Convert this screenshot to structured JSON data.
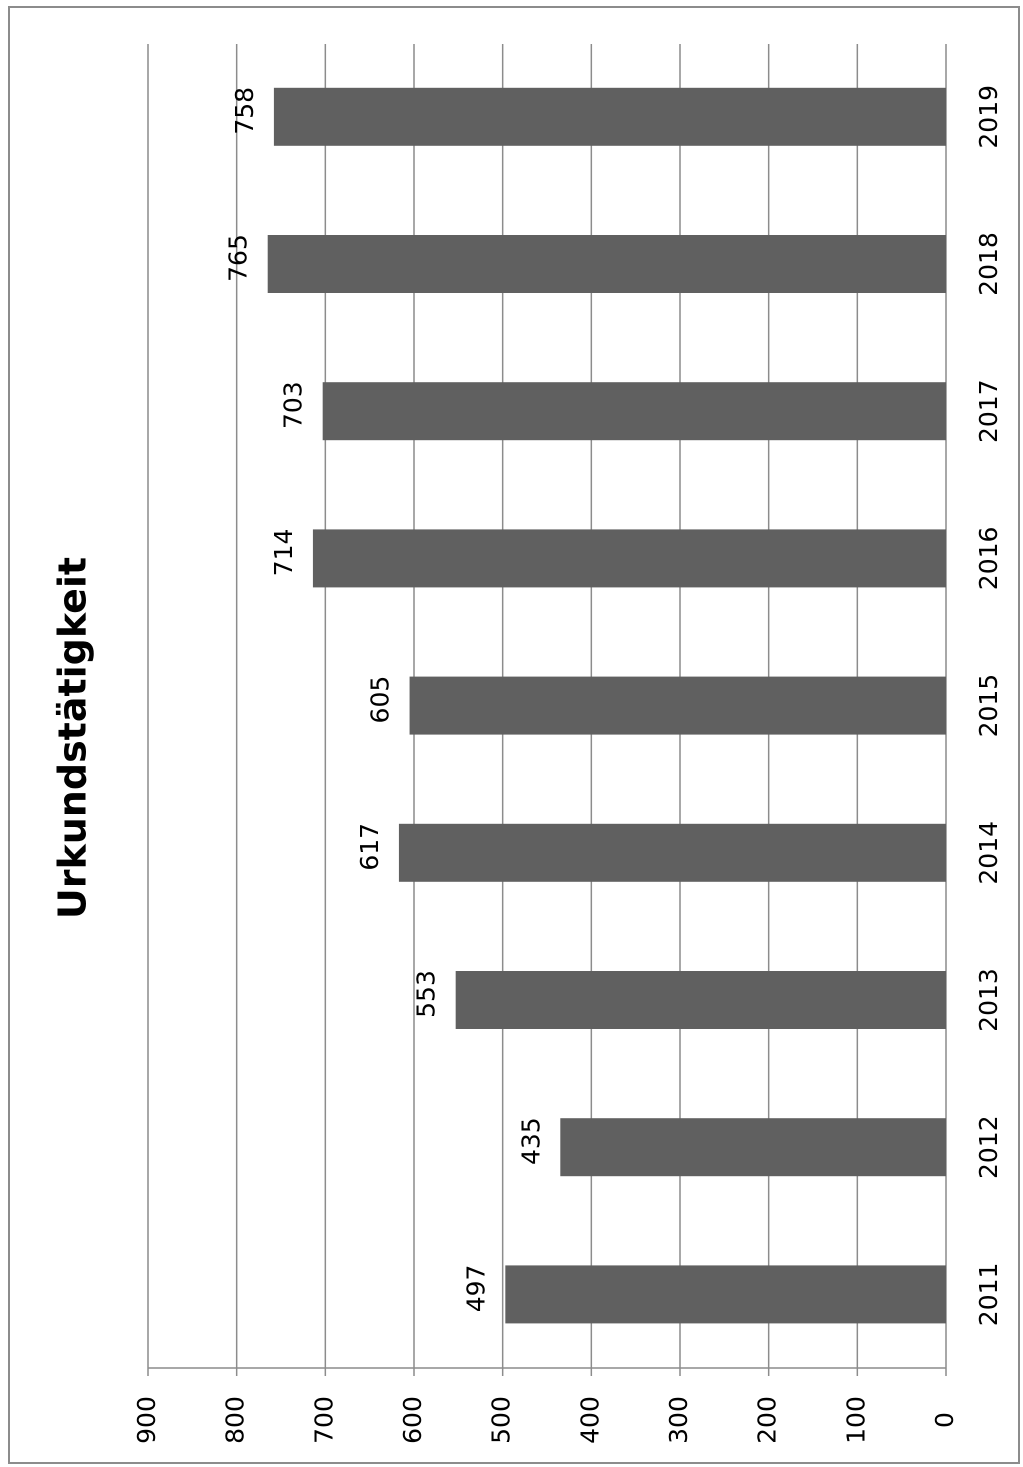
{
  "chart_data": {
    "type": "bar",
    "title": "Urkundstätigkeit",
    "categories": [
      "2011",
      "2012",
      "2013",
      "2014",
      "2015",
      "2016",
      "2017",
      "2018",
      "2019"
    ],
    "values": [
      497,
      435,
      553,
      617,
      605,
      714,
      703,
      765,
      758
    ],
    "ylim": [
      0,
      900
    ],
    "yticks": [
      0,
      100,
      200,
      300,
      400,
      500,
      600,
      700,
      800,
      900
    ],
    "grid": true,
    "legend": "none",
    "orientation": "rotated 90° clockwise",
    "colors": {
      "bar": "#606060",
      "grid": "#8c8c8c",
      "border": "#8c8c8c"
    }
  }
}
